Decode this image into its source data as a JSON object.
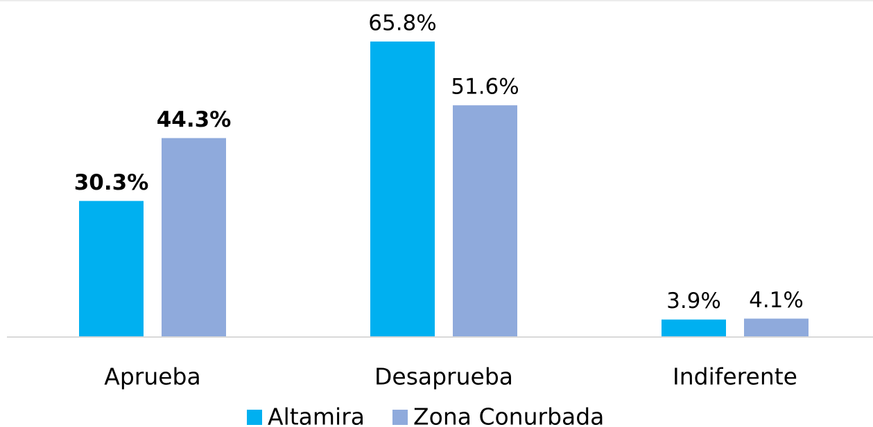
{
  "chart_data": {
    "type": "bar",
    "categories": [
      "Aprueba",
      "Desaprueba",
      "Indiferente"
    ],
    "series": [
      {
        "name": "Altamira",
        "color": "#00b0f0",
        "values": [
          30.3,
          65.8,
          3.9
        ],
        "value_labels": [
          "30.3%",
          "65.8%",
          "3.9%"
        ]
      },
      {
        "name": "Zona Conurbada",
        "color": "#8faadc",
        "values": [
          44.3,
          51.6,
          4.1
        ],
        "value_labels": [
          "44.3%",
          "51.6%",
          "4.1%"
        ]
      }
    ]
  }
}
